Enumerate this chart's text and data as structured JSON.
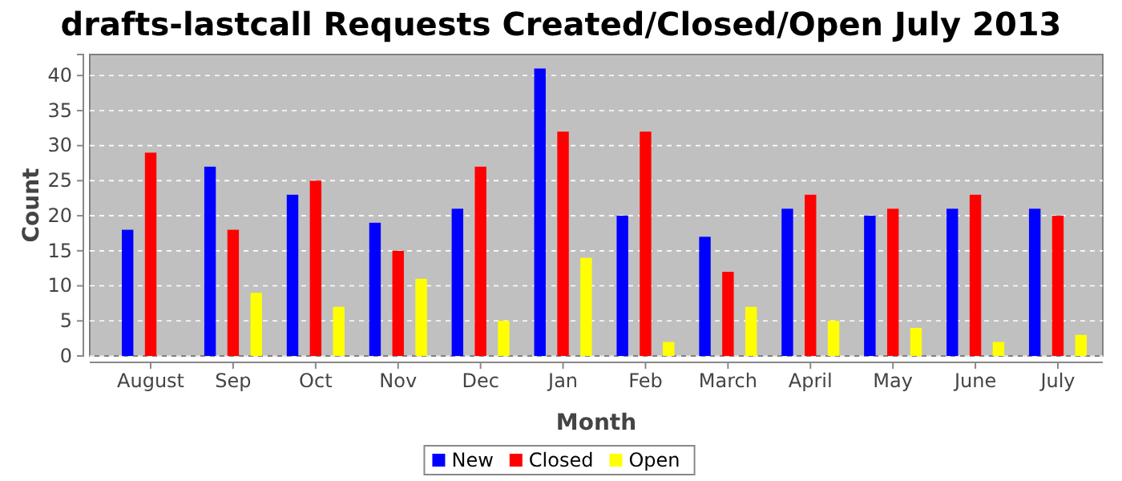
{
  "chart_data": {
    "type": "bar",
    "title": "drafts-lastcall Requests Created/Closed/Open July 2013",
    "xlabel": "Month",
    "ylabel": "Count",
    "categories": [
      "August",
      "Sep",
      "Oct",
      "Nov",
      "Dec",
      "Jan",
      "Feb",
      "March",
      "April",
      "May",
      "June",
      "July"
    ],
    "series": [
      {
        "name": "New",
        "color": "#0000ff",
        "values": [
          18,
          27,
          23,
          19,
          21,
          41,
          20,
          17,
          21,
          20,
          21,
          21
        ]
      },
      {
        "name": "Closed",
        "color": "#ff0000",
        "values": [
          29,
          18,
          25,
          15,
          27,
          32,
          32,
          12,
          23,
          21,
          23,
          20
        ]
      },
      {
        "name": "Open",
        "color": "#ffff00",
        "values": [
          0,
          9,
          7,
          11,
          5,
          14,
          2,
          7,
          5,
          4,
          2,
          3
        ]
      }
    ],
    "ylim": [
      0,
      43
    ],
    "yticks": [
      0,
      5,
      10,
      15,
      20,
      25,
      30,
      35,
      40
    ],
    "grid": "y",
    "legend": "bottom"
  }
}
